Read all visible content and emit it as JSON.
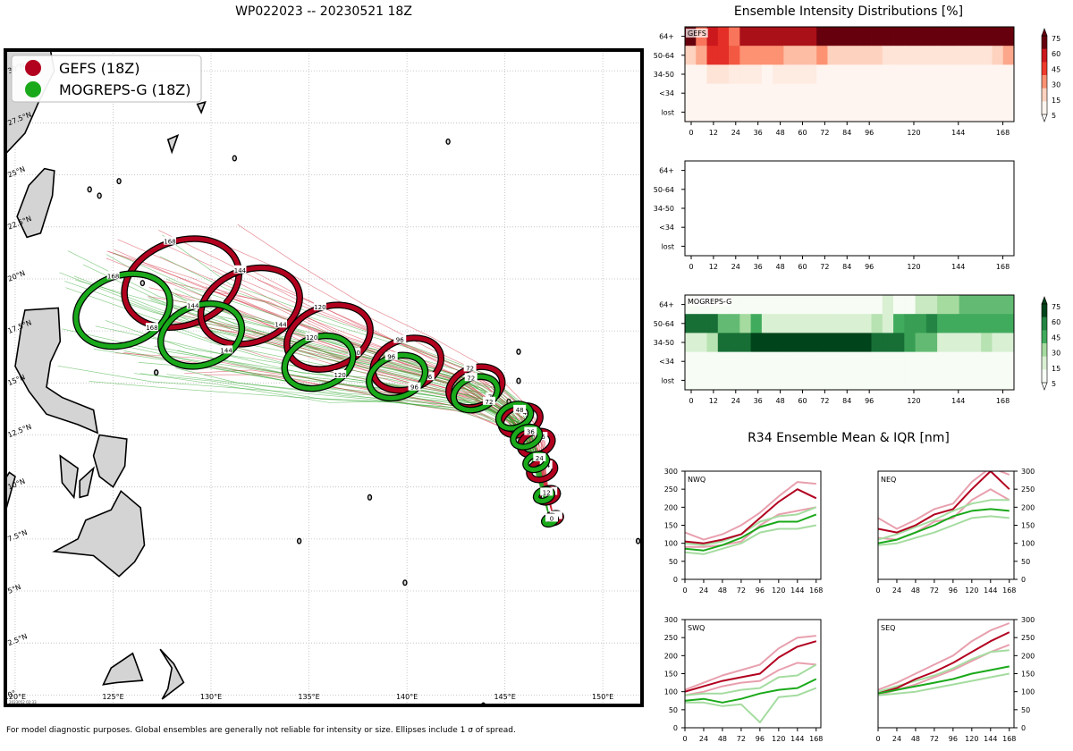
{
  "chart_data": [
    {
      "type": "map",
      "title": "WP022023 -- 20230521 18Z",
      "legend": [
        {
          "label": "GEFS (18Z)",
          "color": "#b2001f"
        },
        {
          "label": "MOGREPS-G (18Z)",
          "color": "#1aa91a"
        }
      ],
      "lon_ticks": [
        "120°E",
        "125°E",
        "130°E",
        "135°E",
        "140°E",
        "145°E",
        "150°E"
      ],
      "lat_ticks": [
        "30°N",
        "27.5°N",
        "25°N",
        "22.5°N",
        "20°N",
        "17.5°N",
        "15°N",
        "12.5°N",
        "10°N",
        "7.5°N",
        "5°N",
        "2.5°N",
        "0°"
      ],
      "lon_range": [
        119.5,
        152
      ],
      "lat_range": [
        -0.5,
        31
      ],
      "stamp": "2023052 02:33",
      "gefs_mean_track": [
        {
          "tau": 0,
          "lon": 147.5,
          "lat": 8.5
        },
        {
          "tau": 12,
          "lon": 147.2,
          "lat": 9.6
        },
        {
          "tau": 24,
          "lon": 146.9,
          "lat": 10.8
        },
        {
          "tau": 36,
          "lon": 146.6,
          "lat": 12.1
        },
        {
          "tau": 48,
          "lon": 145.8,
          "lat": 13.2
        },
        {
          "tau": 72,
          "lon": 143.5,
          "lat": 14.8
        },
        {
          "tau": 96,
          "lon": 140.0,
          "lat": 15.9
        },
        {
          "tau": 120,
          "lon": 136.0,
          "lat": 17.2
        },
        {
          "tau": 144,
          "lon": 132.0,
          "lat": 18.7
        },
        {
          "tau": 168,
          "lon": 128.5,
          "lat": 19.8
        }
      ],
      "mogreps_mean_track": [
        {
          "tau": 0,
          "lon": 147.3,
          "lat": 8.4
        },
        {
          "tau": 12,
          "lon": 147.0,
          "lat": 9.6
        },
        {
          "tau": 24,
          "lon": 146.6,
          "lat": 11.2
        },
        {
          "tau": 36,
          "lon": 146.1,
          "lat": 12.4
        },
        {
          "tau": 48,
          "lon": 145.5,
          "lat": 13.4
        },
        {
          "tau": 72,
          "lon": 143.5,
          "lat": 14.5
        },
        {
          "tau": 96,
          "lon": 139.5,
          "lat": 15.3
        },
        {
          "tau": 120,
          "lon": 135.5,
          "lat": 16.0
        },
        {
          "tau": 144,
          "lon": 129.5,
          "lat": 17.3
        },
        {
          "tau": 168,
          "lon": 125.5,
          "lat": 18.5
        }
      ],
      "footnote": "For model diagnostic purposes. Global ensembles are generally not reliable for intensity or size. Ellipses include 1 σ of spread."
    },
    {
      "type": "heatmap",
      "title": "Ensemble Intensity Distributions [%]",
      "panels": [
        {
          "label": "GEFS",
          "cmap": "reds",
          "rows": [
            "64+",
            "50-64",
            "34-50",
            "<34",
            "lost"
          ],
          "xticks": [
            "0",
            "12",
            "24",
            "36",
            "48",
            "60",
            "72",
            "84",
            "96",
            "120",
            "144",
            "168"
          ],
          "values": [
            [
              75,
              35,
              60,
              50,
              35,
              65,
              65,
              65,
              65,
              65,
              65,
              65,
              80,
              80,
              80,
              80,
              80,
              80,
              80,
              80,
              80,
              80,
              80,
              80,
              80,
              80,
              80,
              80,
              80,
              80
            ],
            [
              15,
              25,
              50,
              50,
              40,
              30,
              30,
              30,
              30,
              20,
              20,
              20,
              30,
              15,
              15,
              15,
              15,
              15,
              10,
              10,
              10,
              10,
              10,
              10,
              10,
              10,
              10,
              10,
              15,
              25
            ],
            [
              5,
              5,
              10,
              10,
              8,
              8,
              8,
              5,
              8,
              8,
              8,
              8,
              5,
              5,
              5,
              5,
              5,
              5,
              5,
              5,
              5,
              5,
              5,
              5,
              5,
              5,
              5,
              5,
              5,
              5
            ],
            [
              5,
              5,
              5,
              5,
              5,
              5,
              5,
              5,
              5,
              5,
              5,
              5,
              5,
              5,
              5,
              5,
              5,
              5,
              5,
              5,
              5,
              5,
              5,
              5,
              5,
              5,
              5,
              5,
              5,
              5
            ],
            [
              5,
              5,
              5,
              5,
              5,
              5,
              5,
              5,
              5,
              5,
              5,
              5,
              5,
              5,
              5,
              5,
              5,
              5,
              5,
              5,
              5,
              5,
              5,
              5,
              5,
              5,
              5,
              5,
              5,
              5
            ]
          ],
          "colorbar": [
            "75",
            "60",
            "45",
            "30",
            "15",
            "5"
          ]
        },
        {
          "label": "",
          "cmap": "none",
          "rows": [
            "64+",
            "50-64",
            "34-50",
            "<34",
            "lost"
          ],
          "xticks": [
            "0",
            "12",
            "24",
            "36",
            "48",
            "60",
            "72",
            "84",
            "96",
            "120",
            "144",
            "168"
          ],
          "values": []
        },
        {
          "label": "MOGREPS-G",
          "cmap": "greens",
          "rows": [
            "64+",
            "50-64",
            "34-50",
            "<34",
            "lost"
          ],
          "xticks": [
            "0",
            "12",
            "24",
            "36",
            "48",
            "60",
            "72",
            "84",
            "96",
            "120",
            "144",
            "168"
          ],
          "values": [
            [
              5,
              5,
              5,
              5,
              5,
              5,
              5,
              5,
              5,
              5,
              5,
              5,
              5,
              5,
              5,
              5,
              5,
              5,
              15,
              5,
              5,
              20,
              20,
              30,
              30,
              40,
              40,
              40,
              40,
              40
            ],
            [
              65,
              65,
              65,
              40,
              40,
              30,
              45,
              15,
              15,
              15,
              15,
              15,
              15,
              15,
              15,
              15,
              15,
              25,
              15,
              45,
              50,
              50,
              60,
              45,
              45,
              45,
              45,
              45,
              45,
              45
            ],
            [
              15,
              15,
              25,
              65,
              65,
              65,
              75,
              75,
              75,
              75,
              75,
              75,
              75,
              75,
              75,
              75,
              75,
              65,
              65,
              65,
              50,
              40,
              40,
              15,
              15,
              15,
              15,
              25,
              15,
              15
            ],
            [
              5,
              5,
              5,
              5,
              5,
              5,
              5,
              5,
              5,
              5,
              5,
              5,
              5,
              5,
              5,
              5,
              5,
              5,
              5,
              5,
              5,
              5,
              5,
              5,
              5,
              5,
              5,
              5,
              5,
              5
            ],
            [
              5,
              5,
              5,
              5,
              5,
              5,
              5,
              5,
              5,
              5,
              5,
              5,
              5,
              5,
              5,
              5,
              5,
              5,
              5,
              5,
              5,
              5,
              5,
              5,
              5,
              5,
              5,
              5,
              5,
              5
            ]
          ],
          "colorbar": [
            "75",
            "60",
            "45",
            "30",
            "15",
            "5"
          ]
        }
      ]
    },
    {
      "type": "line",
      "title": "R34 Ensemble Mean & IQR [nm]",
      "x": [
        0,
        24,
        48,
        72,
        96,
        120,
        144,
        168
      ],
      "xlim": [
        0,
        174
      ],
      "ylim": [
        0,
        300
      ],
      "yticks": [
        "0",
        "50",
        "100",
        "150",
        "200",
        "250",
        "300"
      ],
      "xticks": [
        "0",
        "24",
        "48",
        "72",
        "96",
        "120",
        "144",
        "168"
      ],
      "panels": [
        {
          "label": "NWQ",
          "series": [
            {
              "name": "GEFS mean",
              "values": [
                105,
                100,
                110,
                125,
                170,
                215,
                250,
                225
              ]
            },
            {
              "name": "GEFS IQR upper",
              "values": [
                130,
                110,
                125,
                150,
                185,
                230,
                270,
                265
              ]
            },
            {
              "name": "GEFS IQR lower",
              "values": [
                90,
                90,
                95,
                105,
                150,
                180,
                190,
                200
              ]
            },
            {
              "name": "MOGREPS-G mean",
              "values": [
                85,
                80,
                95,
                115,
                145,
                160,
                160,
                180
              ]
            },
            {
              "name": "MOGREPS-G IQR upper",
              "values": [
                100,
                95,
                105,
                125,
                160,
                175,
                180,
                200
              ]
            },
            {
              "name": "MOGREPS-G IQR lower",
              "values": [
                75,
                70,
                85,
                100,
                130,
                140,
                140,
                150
              ]
            }
          ]
        },
        {
          "label": "NEQ",
          "series": [
            {
              "name": "GEFS mean",
              "values": [
                140,
                130,
                150,
                180,
                195,
                250,
                300,
                250
              ]
            },
            {
              "name": "GEFS IQR upper",
              "values": [
                170,
                140,
                165,
                195,
                210,
                270,
                310,
                290
              ]
            },
            {
              "name": "GEFS IQR lower",
              "values": [
                115,
                110,
                130,
                160,
                170,
                220,
                250,
                220
              ]
            },
            {
              "name": "MOGREPS-G mean",
              "values": [
                100,
                110,
                130,
                150,
                175,
                190,
                195,
                190
              ]
            },
            {
              "name": "MOGREPS-G IQR upper",
              "values": [
                110,
                125,
                145,
                165,
                190,
                210,
                220,
                220
              ]
            },
            {
              "name": "MOGREPS-G IQR lower",
              "values": [
                95,
                100,
                115,
                130,
                150,
                170,
                175,
                170
              ]
            }
          ]
        },
        {
          "label": "SWQ",
          "series": [
            {
              "name": "GEFS mean",
              "values": [
                100,
                115,
                130,
                140,
                150,
                195,
                225,
                240
              ]
            },
            {
              "name": "GEFS IQR upper",
              "values": [
                105,
                125,
                145,
                160,
                175,
                220,
                250,
                255
              ]
            },
            {
              "name": "GEFS IQR lower",
              "values": [
                90,
                100,
                115,
                125,
                130,
                160,
                180,
                175
              ]
            },
            {
              "name": "MOGREPS-G mean",
              "values": [
                75,
                80,
                70,
                80,
                95,
                105,
                110,
                135
              ]
            },
            {
              "name": "MOGREPS-G IQR upper",
              "values": [
                90,
                95,
                95,
                105,
                110,
                140,
                145,
                175
              ]
            },
            {
              "name": "MOGREPS-G IQR lower",
              "values": [
                70,
                70,
                60,
                65,
                15,
                85,
                90,
                110
              ]
            }
          ]
        },
        {
          "label": "SEQ",
          "series": [
            {
              "name": "GEFS mean",
              "values": [
                95,
                110,
                135,
                155,
                180,
                210,
                240,
                265
              ]
            },
            {
              "name": "GEFS IQR upper",
              "values": [
                105,
                125,
                150,
                175,
                200,
                240,
                270,
                290
              ]
            },
            {
              "name": "GEFS IQR lower",
              "values": [
                90,
                105,
                120,
                140,
                160,
                185,
                210,
                230
              ]
            },
            {
              "name": "MOGREPS-G mean",
              "values": [
                95,
                105,
                115,
                125,
                135,
                150,
                160,
                170
              ]
            },
            {
              "name": "MOGREPS-G IQR upper",
              "values": [
                100,
                115,
                130,
                145,
                165,
                190,
                210,
                215
              ]
            },
            {
              "name": "MOGREPS-G IQR lower",
              "values": [
                90,
                95,
                100,
                110,
                120,
                130,
                140,
                150
              ]
            }
          ]
        }
      ]
    }
  ]
}
